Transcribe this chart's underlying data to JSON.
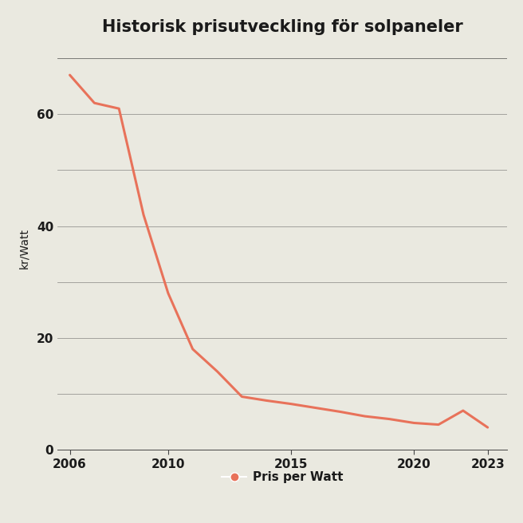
{
  "title": "Historisk prisutveckling för solpaneler",
  "ylabel": "kr/Watt",
  "xlabel": "",
  "legend_label": "Pris per Watt",
  "years": [
    2006,
    2007,
    2008,
    2009,
    2010,
    2011,
    2012,
    2013,
    2014,
    2015,
    2016,
    2017,
    2018,
    2019,
    2020,
    2021,
    2022,
    2023
  ],
  "values": [
    67,
    62,
    61,
    42,
    28,
    18,
    14,
    9.5,
    8.8,
    8.2,
    7.5,
    6.8,
    6.0,
    5.5,
    4.8,
    4.5,
    7.0,
    4.0
  ],
  "line_color": "#E8725A",
  "marker_color": "#E8725A",
  "background_color": "#EAE9E0",
  "text_color": "#1a1a1a",
  "grid_color": "#444444",
  "yticks_labeled": [
    0,
    20,
    40,
    60
  ],
  "yticks_all": [
    0,
    10,
    20,
    30,
    40,
    50,
    60,
    70
  ],
  "xticks": [
    2006,
    2010,
    2015,
    2020,
    2023
  ],
  "ylim": [
    0,
    72
  ],
  "xlim": [
    2005.5,
    2023.8
  ],
  "title_fontsize": 15,
  "axis_label_fontsize": 10,
  "tick_fontsize": 11,
  "legend_fontsize": 11,
  "line_width": 2.2
}
